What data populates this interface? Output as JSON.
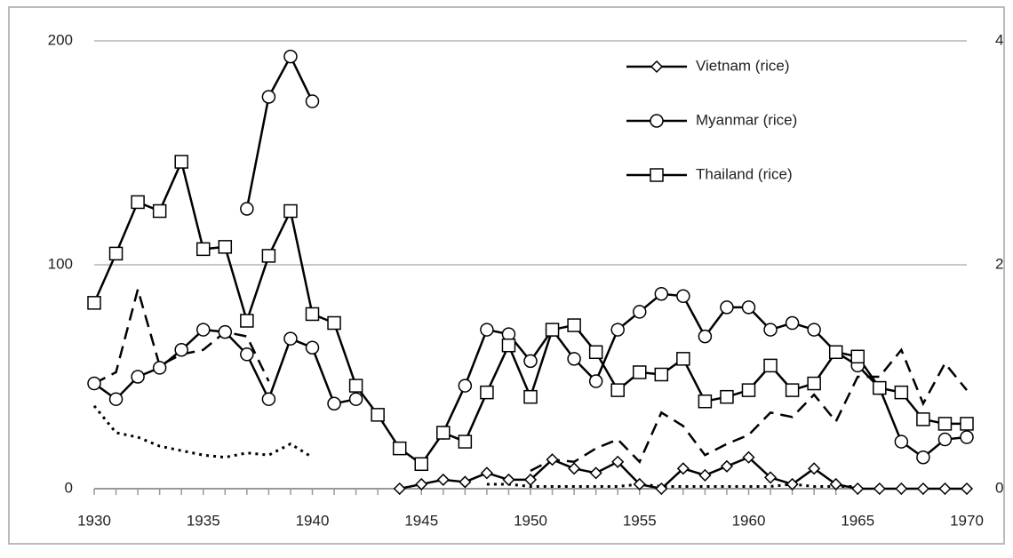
{
  "chart_data": {
    "type": "line",
    "x": [
      1930,
      1931,
      1932,
      1933,
      1934,
      1935,
      1936,
      1937,
      1938,
      1939,
      1940,
      1941,
      1942,
      1943,
      1944,
      1945,
      1946,
      1947,
      1948,
      1949,
      1950,
      1951,
      1952,
      1953,
      1954,
      1955,
      1956,
      1957,
      1958,
      1959,
      1960,
      1961,
      1962,
      1963,
      1964,
      1965,
      1966,
      1967,
      1968,
      1969,
      1970
    ],
    "xlim": [
      1930,
      1970
    ],
    "xticks": [
      1930,
      1935,
      1940,
      1945,
      1950,
      1955,
      1960,
      1965,
      1970
    ],
    "ylim": [
      0,
      200
    ],
    "yticks": [
      0,
      100,
      200
    ],
    "y2lim": [
      0,
      4
    ],
    "y2ticks": [
      0,
      2,
      4
    ],
    "grid": true,
    "legend": "top-right",
    "series": [
      {
        "name": "Vietnam (rice)",
        "color": "#000000",
        "marker": "diamond",
        "dash": "solid",
        "values": [
          null,
          null,
          null,
          null,
          null,
          null,
          null,
          null,
          null,
          null,
          null,
          null,
          null,
          null,
          0,
          2,
          4,
          3,
          7,
          4,
          4,
          13,
          9,
          7,
          12,
          2,
          0,
          9,
          6,
          10,
          14,
          5,
          2,
          9,
          2,
          0,
          0,
          0,
          0,
          0,
          0
        ]
      },
      {
        "name": "Myanmar (rice)",
        "color": "#000000",
        "marker": "circle",
        "dash": "solid",
        "values": [
          47,
          40,
          50,
          54,
          62,
          71,
          70,
          60,
          40,
          67,
          63,
          38,
          40,
          null,
          null,
          null,
          25,
          46,
          71,
          69,
          57,
          71,
          58,
          48,
          71,
          79,
          87,
          86,
          68,
          81,
          81,
          71,
          74,
          71,
          61,
          55,
          45,
          21,
          14,
          22,
          23
        ]
      },
      {
        "name": "Thailand (rice)",
        "color": "#000000",
        "marker": "square",
        "dash": "solid",
        "values": [
          83,
          105,
          128,
          124,
          146,
          107,
          108,
          75,
          104,
          124,
          78,
          74,
          46,
          33,
          18,
          11,
          25,
          21,
          43,
          64,
          41,
          71,
          73,
          61,
          44,
          52,
          51,
          58,
          39,
          41,
          44,
          55,
          44,
          47,
          61,
          59,
          45,
          43,
          31,
          29,
          29
        ]
      },
      {
        "color": "#000000",
        "marker": "circle",
        "dash": "solid",
        "values": [
          null,
          null,
          null,
          null,
          null,
          null,
          null,
          125,
          175,
          193,
          173,
          null,
          null,
          null,
          null,
          null,
          null,
          null,
          null,
          null,
          null,
          null,
          null,
          null,
          null,
          null,
          null,
          null,
          null,
          null,
          null,
          null,
          null,
          null,
          null,
          null,
          null,
          null,
          null,
          null,
          null
        ]
      },
      {
        "color": "#000000",
        "marker": "none",
        "dash": "dashed",
        "axis": "y2",
        "values": [
          0.94,
          1.04,
          1.78,
          1.1,
          1.2,
          1.24,
          1.4,
          1.36,
          0.96,
          null,
          null,
          null,
          null,
          null,
          null,
          null,
          null,
          null,
          null,
          null,
          0.16,
          0.26,
          0.24,
          0.36,
          0.44,
          0.24,
          0.68,
          0.56,
          0.3,
          0.4,
          0.48,
          0.68,
          0.64,
          0.84,
          0.6,
          1,
          1,
          1.24,
          0.76,
          1.12,
          0.88
        ]
      },
      {
        "color": "#000000",
        "marker": "none",
        "dash": "dotted",
        "axis": "y2",
        "values": [
          0.74,
          0.5,
          0.46,
          0.38,
          0.34,
          0.3,
          0.28,
          0.32,
          0.3,
          0.4,
          0.28,
          null,
          null,
          null,
          null,
          null,
          null,
          null,
          0.04,
          0.04,
          0.02,
          0.02,
          0.02,
          0.02,
          0.02,
          0.04,
          0.02,
          0.02,
          0.02,
          0.02,
          0.02,
          0.02,
          0.04,
          0.02,
          0.02,
          0.02,
          null,
          null,
          null,
          null,
          null
        ]
      }
    ]
  }
}
